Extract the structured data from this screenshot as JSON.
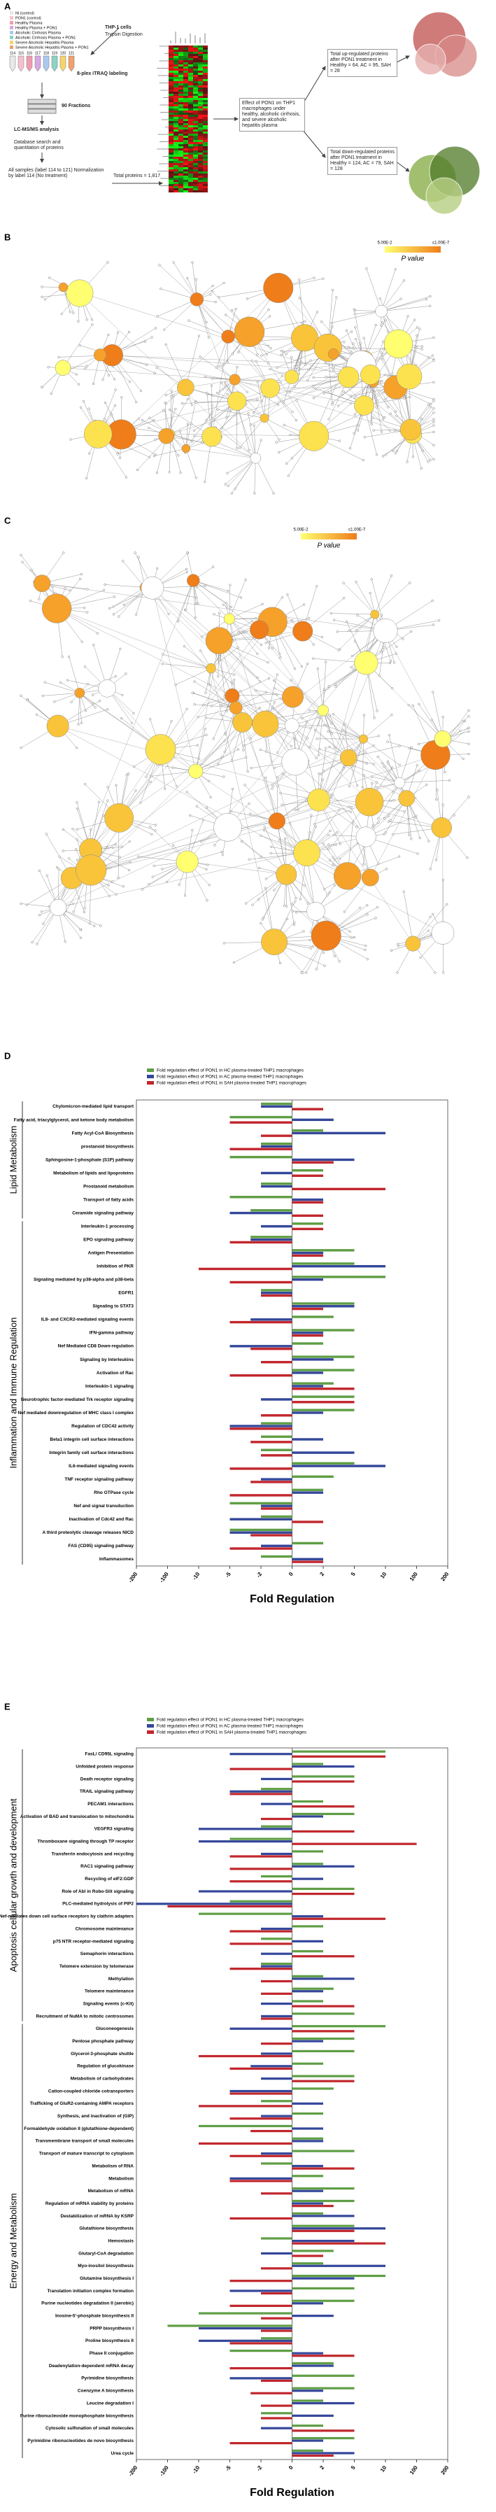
{
  "panel_a": {
    "label": "A",
    "samples": [
      "Ni (control)",
      "PON1 (control)",
      "Healthy Plasma",
      "Healthy Plasma + PON1",
      "Alcoholic Cirrhosis Plasma",
      "Alcoholic Cirrhosis Plasma + PON1",
      "Severe Alcoholic Hepatitis Plasma",
      "Severe Alcoholic Hepatitis Plasma + PON1"
    ],
    "tube_labels": [
      "114",
      "115",
      "116",
      "117",
      "118",
      "119",
      "120",
      "121"
    ],
    "cells": "THP-1 cells",
    "digestion": "Trypsin Digestion",
    "labeling": "8-plex iTRAQ labeling",
    "fractions": "90 Fractions",
    "ms": "LC-MS/MS analysis",
    "search": "Database search and quantitation of proteins",
    "normalization": "All samples (label 114 to 121) Normalization by label 114 (No treatment)",
    "total": "Total proteins = 1,817",
    "effect": "Effect of PON1 on THP1 macrophages under healthy, alcoholic cirrhosis, and severe alcoholic hepatitis plasma",
    "up": "Total up-regulated proteins after PON1 treatment in Healthy = 64, AC = 95, SAH = 28",
    "down": "Total down-regulated proteins after PON1 treatment in Healthy = 124, AC = 79, SAH = 128"
  },
  "panel_b": {
    "label": "B",
    "legend_min": "5.00E-2",
    "legend_max": "≤1.00E-7",
    "legend_title": "P value"
  },
  "panel_c": {
    "label": "C",
    "legend_min": "5.00E-2",
    "legend_max": "≤1.00E-7",
    "legend_title": "P value"
  },
  "chart_data": [
    {
      "type": "bar",
      "panel": "D",
      "groups": [
        {
          "name": "Lipid Metabolism",
          "categories": [
            "Chylomicron-mediated lipid transport",
            "Fatty acid, triacylglycerol, and ketone body metabolism",
            "Fatty Acyl-CoA Biosynthesis",
            "prostanoid biosynthesis",
            "Sphingosine-1-phosphate (S1P) pathway",
            "Metabolism of lipids and lipoproteins",
            "Prostanoid metabolism",
            "Transport of fatty acids",
            "Ceramide signaling pathway"
          ]
        },
        {
          "name": "Inflammation and Immune Regulation",
          "categories": [
            "Interleukin-1 processing",
            "EPO signaling pathway",
            "Antigen Presentation",
            "Inhibition of PKR",
            "Signaling mediated by p38-alpha and p38-beta",
            "EGFR1",
            "Signaling to STAT3",
            "IL8- and CXCR2-mediated signaling events",
            "IFN-gamma pathway",
            "Nef Mediated CD8 Down-regulation",
            "Signaling by Interleukins",
            "Activation of Rac",
            "Interleukin-1 signaling",
            "Neurotrophic factor-mediated Trk receptor signaling",
            "Nef mediated downregulation of MHC class I complex",
            "Regulation of CDC42 activity",
            "Beta1 integrin cell surface interactions",
            "Integrin family cell surface interactions",
            "IL6-mediated signaling events",
            "TNF receptor signaling pathway",
            "Rho GTPase cycle",
            "Nef and signal transduction",
            "Inactivation of Cdc42 and Rac",
            "A third proteolytic cleavage releases NICD",
            "FAS (CD95) signaling pathway",
            "Inflammasomes"
          ]
        }
      ],
      "series": [
        {
          "name": "Fold regulation effect of PON1 in HC plasma-treated THP1 macrophages",
          "color": "#5f9e45",
          "values": [
            -2,
            -5,
            2,
            -2,
            -5,
            2,
            -2,
            -5,
            -3,
            2,
            -3,
            5,
            5,
            10,
            -2,
            5,
            3,
            5,
            2,
            5,
            5,
            3,
            5,
            5,
            -2,
            -2,
            -2,
            5,
            3,
            2,
            -5,
            -2,
            -5,
            2,
            -2
          ]
        },
        {
          "name": "Fold regulation effect of PON1 in AC plasma-treated THP1 macrophages",
          "color": "#34479a",
          "values": [
            -2,
            3,
            10,
            -2,
            5,
            -2,
            -2,
            2,
            -5,
            -2,
            -3,
            2,
            10,
            2,
            -2,
            5,
            -3,
            2,
            -5,
            3,
            2,
            2,
            -2,
            2,
            -5,
            2,
            5,
            10,
            -2,
            2,
            -2,
            -5,
            -5,
            -2,
            2
          ]
        },
        {
          "name": "Fold regulation effect of PON1 in SAH plasma-treated THP1 macrophages",
          "color": "#c1272d",
          "values": [
            2,
            -5,
            -2,
            -5,
            3,
            2,
            10,
            2,
            2,
            2,
            -5,
            2,
            -10,
            -5,
            -2,
            2,
            -5,
            2,
            -3,
            -2,
            -5,
            5,
            5,
            -2,
            -5,
            -3,
            -2,
            -5,
            -3,
            -5,
            -2,
            2,
            -3,
            -5,
            2
          ]
        }
      ],
      "xlabel": "Fold Regulation",
      "xlim": [
        -200,
        200
      ],
      "xticks": [
        -200,
        -100,
        -10,
        -5,
        -2,
        0,
        2,
        5,
        10,
        100,
        200
      ]
    },
    {
      "type": "bar",
      "panel": "E",
      "groups": [
        {
          "name": "Apoptosis cellular growth and development",
          "categories": [
            "FasL/ CD95L signaling",
            "Unfolded protein response",
            "Death receptor signaling",
            "TRAIL signaling pathway",
            "PECAM1 interactions",
            "Activation of BAD and translocation to mitochondria",
            "VEGFR3 signaling",
            "Thromboxane signaling through TP receptor",
            "Transferrin endocytosis and recycling",
            "RAC1 signaling pathway",
            "Recycling of eIF2:GDP",
            "Role of Abl in Robo-Slit signaling",
            "PLC-mediated hydrolysis of PIP2",
            "Nef-mediates down cell surface receptors by clathrin adapters",
            "Chromosome maintenance",
            "p75 NTR receptor-mediated signaling",
            "Semaphorin interactions",
            "Telomere extension by telomerase",
            "Methylation",
            "Telomere maintenance",
            "Signaling events (c-Kit)",
            "Recruitment of NuMA to mitotic centrosomes"
          ]
        },
        {
          "name": "Energy and Metabolism",
          "categories": [
            "Gluconeogenesis",
            "Pentose phosphate pathway",
            "Glycerol-3-phosphate shuttle",
            "Regulation of glucokinase",
            "Metabolism of carbohydrates",
            "Cation-coupled chloride cotransporters",
            "Trafficking of GluR2-containing AMPA receptors",
            "Synthesis, and inactivation of (GIP)",
            "Formaldehyde oxidation II (glutathione-dependent)",
            "Transmembrane transport of small molecules",
            "Transport of mature transcript to cytoplasm",
            "Metabolism of RNA",
            "Metabolism",
            "Metabolism of mRNA",
            "Regulation of mRNA stability by proteins",
            "Destabilization of mRNA by KSRP",
            "Glutathione biosynthesis",
            "Hemostasis",
            "Glutaryl-CoA degradation",
            "Myo-inositol biosynthesis",
            "Glutamine biosynthesis I",
            "Translation initiation complex formation",
            "Purine nucleotides degradation II (aerobic)",
            "Inosine-5'-phosphate biosynthesis II",
            "PRPP biosynthesis I",
            "Proline biosynthesis II",
            "Phase II conjugation",
            "Deadenylation-dependent mRNA decay",
            "Pyrimidine biosynthesis",
            "Coenzyme A biosynthesis",
            "Leucine degradation I",
            "Purine ribonucleoside monophosphate biosynthesis",
            "Cytosolic sulfonation of small molecules",
            "Pyrimidine ribonucleotides de novo biosynthesis",
            "Urea cycle"
          ]
        }
      ],
      "series": [
        {
          "name": "Fold regulation effect of PON1 in HC plasma-treated THP1 macrophages",
          "color": "#5f9e45",
          "values": [
            10,
            2,
            5,
            -2,
            2,
            5,
            -2,
            -5,
            2,
            2,
            -2,
            5,
            -5,
            -10,
            2,
            -2,
            2,
            -2,
            2,
            3,
            2,
            5,
            10,
            5,
            5,
            2,
            5,
            3,
            -2,
            2,
            -10,
            2,
            5,
            -2,
            2,
            5,
            5,
            2,
            5,
            -2,
            3,
            2,
            10,
            5,
            5,
            -10,
            -100,
            -2,
            -5,
            3,
            5,
            5,
            2,
            -2,
            2,
            5,
            2
          ]
        },
        {
          "name": "Fold regulation effect of PON1 in AC plasma-treated THP1 macrophages",
          "color": "#34479a",
          "values": [
            -5,
            5,
            -2,
            -5,
            -2,
            2,
            -10,
            -10,
            -2,
            5,
            2,
            -10,
            -200,
            2,
            -2,
            2,
            -2,
            -2,
            5,
            2,
            -2,
            -2,
            -5,
            2,
            -2,
            -3,
            -2,
            -5,
            2,
            -2,
            2,
            2,
            -2,
            2,
            -5,
            2,
            2,
            5,
            10,
            5,
            -2,
            10,
            5,
            -5,
            2,
            3,
            -10,
            -10,
            2,
            3,
            -5,
            2,
            5,
            3,
            -2,
            2,
            5
          ]
        },
        {
          "name": "Fold regulation effect of PON1 in SAH plasma-treated THP1 macrophages",
          "color": "#c1272d",
          "values": [
            10,
            -5,
            5,
            -5,
            5,
            -2,
            5,
            100,
            -5,
            -5,
            -5,
            5,
            -100,
            10,
            -5,
            -5,
            5,
            -5,
            -2,
            -2,
            5,
            -2,
            5,
            -2,
            -10,
            -5,
            5,
            -5,
            -10,
            -5,
            -3,
            -10,
            -5,
            5,
            -5,
            -2,
            3,
            -5,
            5,
            10,
            2,
            -2,
            -5,
            -2,
            -5,
            -2,
            -2,
            -5,
            5,
            -5,
            -2,
            -3,
            -2,
            -2,
            5,
            -5,
            3
          ]
        }
      ],
      "xlabel": "Fold Regulation",
      "xlim": [
        -200,
        200
      ],
      "xticks": [
        -200,
        -100,
        -10,
        -5,
        -2,
        0,
        2,
        5,
        10,
        100,
        200
      ]
    }
  ]
}
